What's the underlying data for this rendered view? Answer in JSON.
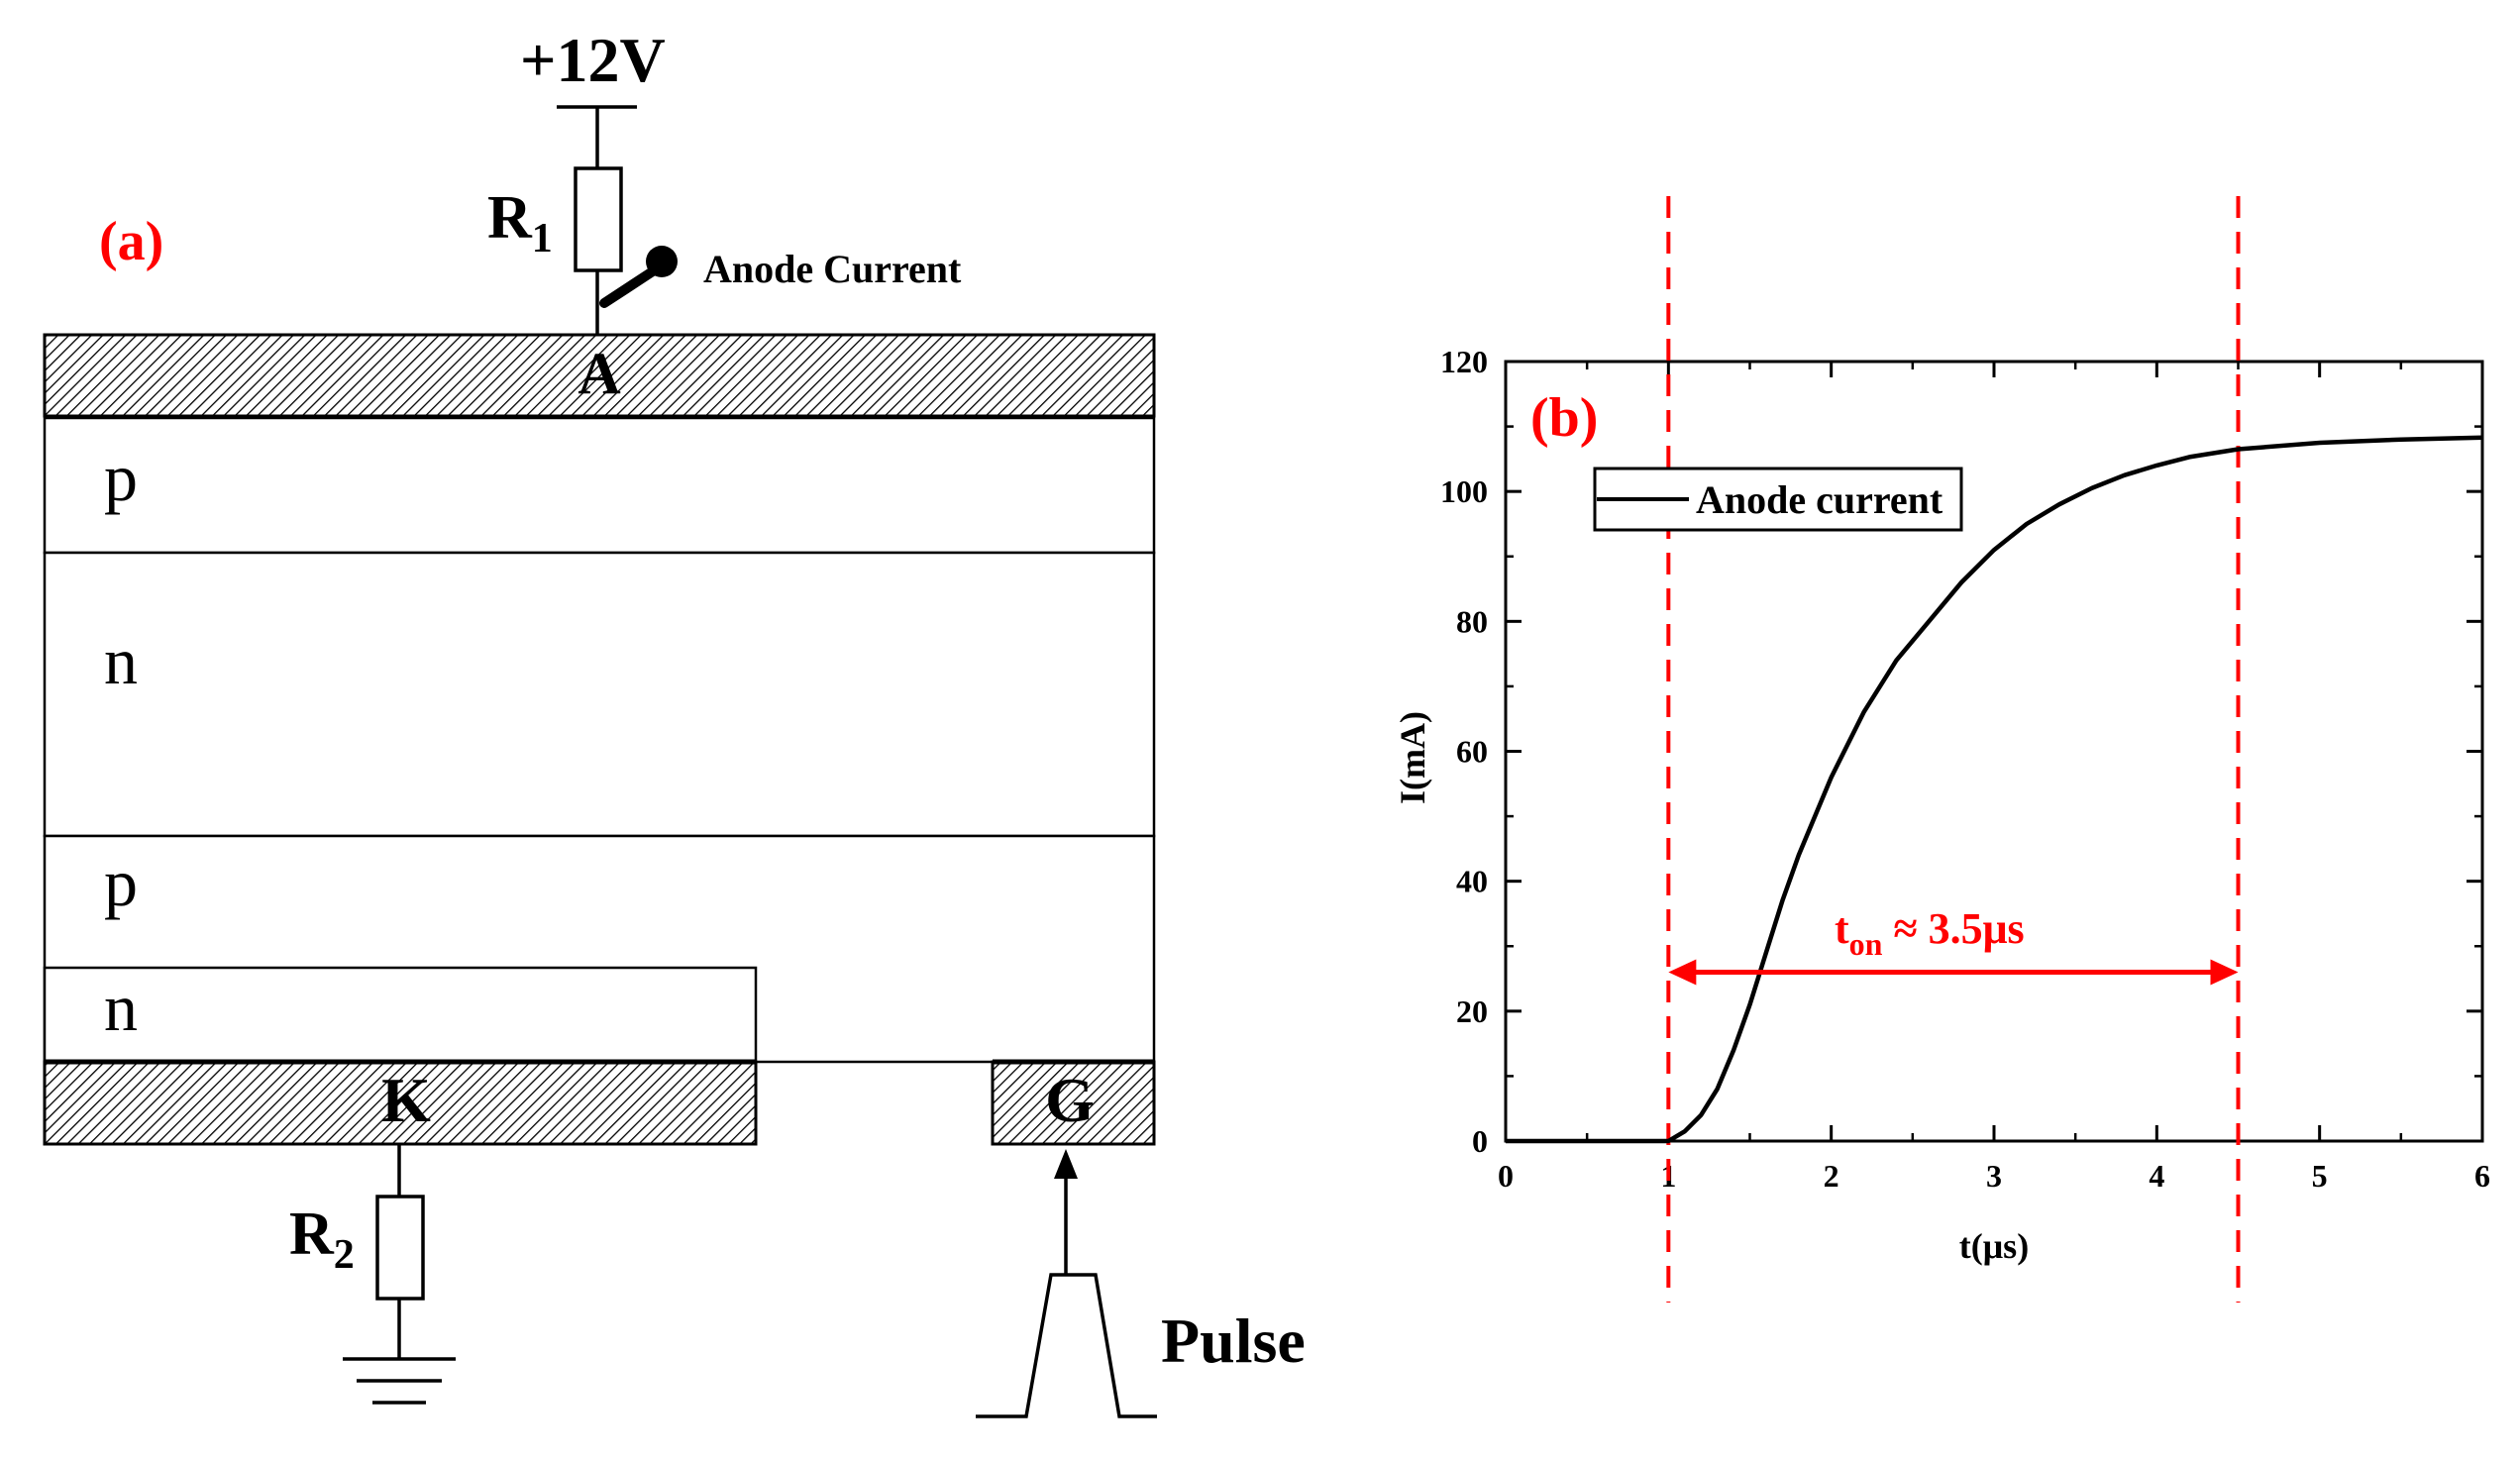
{
  "panel_a": {
    "label": "(a)",
    "supply_voltage": "+12V",
    "resistor_top": {
      "letter": "R",
      "sub": "1"
    },
    "probe_label": "Anode Current",
    "anode_label": "A",
    "layers": [
      "p",
      "n",
      "p",
      "n"
    ],
    "cathode_label": "K",
    "gate_label": "G",
    "resistor_bottom": {
      "letter": "R",
      "sub": "2"
    },
    "pulse_label": "Pulse",
    "colors": {
      "label_red": "#ff0000",
      "line": "#000000"
    }
  },
  "panel_b": {
    "label": "(b)",
    "annotation": {
      "t": "t",
      "sub": "on",
      "rest": " ≈ 3.5μs"
    },
    "colors": {
      "accent": "#ff0000",
      "curve": "#000000"
    }
  },
  "chart_data": {
    "type": "line",
    "xlabel": "t(μs)",
    "ylabel": "I(mA)",
    "xlim": [
      0,
      6
    ],
    "ylim": [
      0,
      120
    ],
    "xticks": [
      0,
      1,
      2,
      3,
      4,
      5,
      6
    ],
    "yticks": [
      0,
      20,
      40,
      60,
      80,
      100,
      120
    ],
    "grid": false,
    "legend_position": "top-left",
    "series": [
      {
        "name": "Anode current",
        "color": "#000000",
        "x": [
          0,
          0.9,
          1.0,
          1.1,
          1.2,
          1.3,
          1.4,
          1.5,
          1.6,
          1.7,
          1.8,
          1.9,
          2.0,
          2.2,
          2.4,
          2.6,
          2.8,
          3.0,
          3.2,
          3.4,
          3.6,
          3.8,
          4.0,
          4.2,
          4.5,
          5.0,
          5.5,
          6.0
        ],
        "y": [
          0,
          0,
          0,
          1.5,
          4,
          8,
          14,
          21,
          29,
          37,
          44,
          50,
          56,
          66,
          74,
          80,
          86,
          91,
          95,
          98,
          100.5,
          102.5,
          104,
          105.3,
          106.5,
          107.5,
          108,
          108.3
        ]
      }
    ],
    "vlines": [
      1.0,
      4.5
    ],
    "span_annotation": {
      "from": 1.0,
      "to": 4.5,
      "y": 26
    }
  }
}
